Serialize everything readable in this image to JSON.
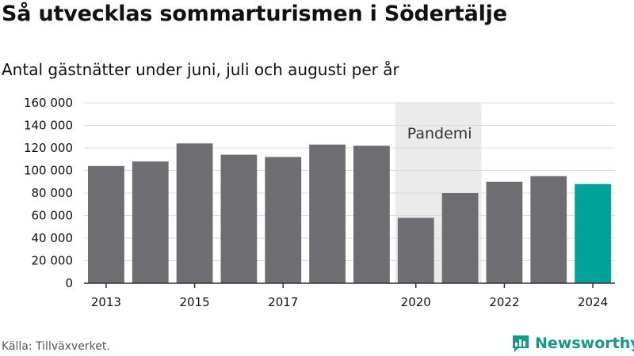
{
  "title": "Så utvecklas sommarturismen i Södertälje",
  "subtitle": "Antal gästnätter under juni, juli och augusti per år",
  "source": "Källa: Tillväxverket.",
  "brand": {
    "name": "Newsworthy",
    "color": "#139a8a",
    "icon": "bar-chart-logo-icon"
  },
  "chart_data": {
    "type": "bar",
    "title": "Så utvecklas sommarturismen i Södertälje",
    "subtitle": "Antal gästnätter under juni, juli och augusti per år",
    "categories": [
      "2013",
      "2014",
      "2015",
      "2016",
      "2017",
      "2018",
      "2019",
      "2020",
      "2021",
      "2022",
      "2023",
      "2024"
    ],
    "values": [
      104000,
      108000,
      124000,
      114000,
      112000,
      123000,
      122000,
      58000,
      80000,
      90000,
      95000,
      88000
    ],
    "x_tick_labels": [
      "2013",
      "",
      "2015",
      "",
      "2017",
      "",
      "",
      "2020",
      "",
      "2022",
      "",
      "2024"
    ],
    "y_tick_labels": [
      "0",
      "20 000",
      "40 000",
      "60 000",
      "80 000",
      "100 000",
      "120 000",
      "140 000",
      "160 000"
    ],
    "ylim": [
      0,
      160000
    ],
    "grid": true,
    "highlight": {
      "category": "2024",
      "color": "#00a398"
    },
    "bar_color": "#6e6d72",
    "annotation": {
      "text": "Pandemi",
      "from": "2020",
      "to": "2021",
      "shade_color": "#ebebeb"
    },
    "xlabel": "",
    "ylabel": ""
  }
}
